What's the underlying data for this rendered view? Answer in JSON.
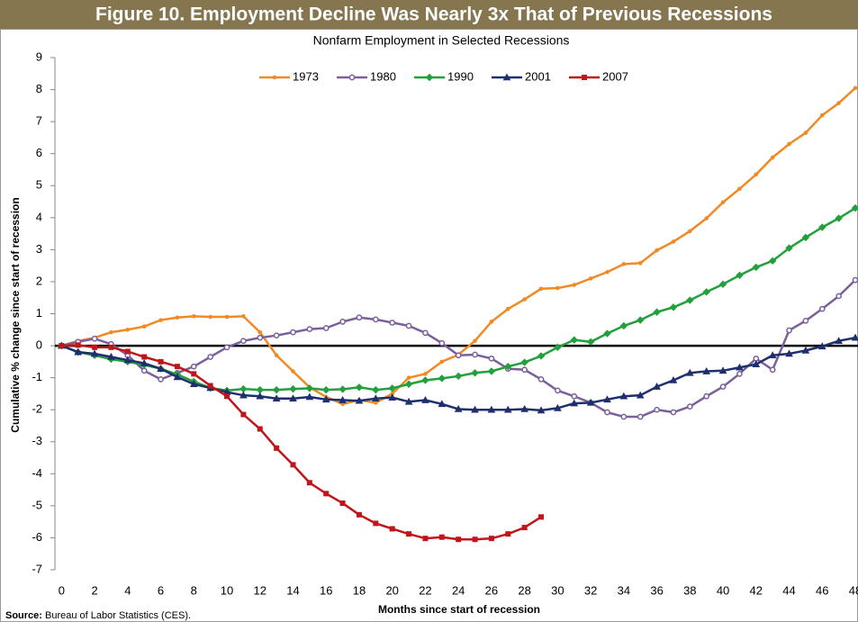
{
  "chart_data": {
    "type": "line",
    "title": "Figure 10. Employment Decline Was Nearly 3x That of Previous Recessions",
    "subtitle": "Nonfarm Employment in Selected Recessions",
    "x_label": "Months since start of recession",
    "y_label": "Cumulative % change since start of recession",
    "source": {
      "label": "Source:",
      "text": "Bureau of Labor Statistics (CES)."
    },
    "x": [
      0,
      1,
      2,
      3,
      4,
      5,
      6,
      7,
      8,
      9,
      10,
      11,
      12,
      13,
      14,
      15,
      16,
      17,
      18,
      19,
      20,
      21,
      22,
      23,
      24,
      25,
      26,
      27,
      28,
      29,
      30,
      31,
      32,
      33,
      34,
      35,
      36,
      37,
      38,
      39,
      40,
      41,
      42,
      43,
      44,
      45,
      46,
      47,
      48
    ],
    "xlim": [
      -0.4,
      48
    ],
    "xticks": [
      0,
      2,
      4,
      6,
      8,
      10,
      12,
      14,
      16,
      18,
      20,
      22,
      24,
      26,
      28,
      30,
      32,
      34,
      36,
      38,
      40,
      42,
      44,
      46,
      48
    ],
    "ylim": [
      -7,
      9
    ],
    "yticks": [
      -7,
      -6,
      -5,
      -4,
      -3,
      -2,
      -1,
      0,
      1,
      2,
      3,
      4,
      5,
      6,
      7,
      8,
      9
    ],
    "legend": "top",
    "series": [
      {
        "name": "1973",
        "color": "#f08a24",
        "marker": "dot",
        "values": [
          0,
          0.15,
          0.25,
          0.42,
          0.5,
          0.6,
          0.8,
          0.88,
          0.92,
          0.9,
          0.9,
          0.92,
          0.42,
          -0.3,
          -0.8,
          -1.3,
          -1.6,
          -1.82,
          -1.7,
          -1.78,
          -1.5,
          -1.0,
          -0.88,
          -0.5,
          -0.28,
          0.15,
          0.75,
          1.15,
          1.45,
          1.78,
          1.8,
          1.9,
          2.1,
          2.3,
          2.55,
          2.58,
          2.98,
          3.25,
          3.58,
          3.98,
          4.48,
          4.9,
          5.35,
          5.88,
          6.3,
          6.65,
          7.2,
          7.58,
          8.05
        ]
      },
      {
        "name": "1980",
        "color": "#7a5f9c",
        "marker": "circle",
        "values": [
          0,
          0.12,
          0.22,
          0.05,
          -0.3,
          -0.78,
          -1.05,
          -0.85,
          -0.65,
          -0.35,
          -0.05,
          0.15,
          0.25,
          0.32,
          0.42,
          0.52,
          0.55,
          0.75,
          0.88,
          0.82,
          0.72,
          0.62,
          0.4,
          0.08,
          -0.3,
          -0.28,
          -0.4,
          -0.72,
          -0.75,
          -1.05,
          -1.4,
          -1.58,
          -1.78,
          -2.08,
          -2.22,
          -2.22,
          -2.0,
          -2.08,
          -1.9,
          -1.58,
          -1.28,
          -0.88,
          -0.4,
          -0.75,
          0.48,
          0.78,
          1.15,
          1.55,
          2.05
        ]
      },
      {
        "name": "1990",
        "color": "#22a03c",
        "marker": "diamond",
        "values": [
          0,
          -0.2,
          -0.3,
          -0.42,
          -0.5,
          -0.6,
          -0.72,
          -0.9,
          -1.12,
          -1.32,
          -1.4,
          -1.35,
          -1.38,
          -1.38,
          -1.35,
          -1.33,
          -1.38,
          -1.36,
          -1.3,
          -1.38,
          -1.33,
          -1.2,
          -1.08,
          -1.02,
          -0.95,
          -0.85,
          -0.8,
          -0.65,
          -0.52,
          -0.32,
          -0.05,
          0.18,
          0.12,
          0.38,
          0.62,
          0.8,
          1.05,
          1.2,
          1.42,
          1.68,
          1.92,
          2.2,
          2.45,
          2.65,
          3.05,
          3.38,
          3.7,
          3.98,
          4.3
        ]
      },
      {
        "name": "2001",
        "color": "#1f2f6e",
        "marker": "triangle",
        "values": [
          0,
          -0.2,
          -0.25,
          -0.35,
          -0.45,
          -0.55,
          -0.72,
          -0.98,
          -1.2,
          -1.32,
          -1.45,
          -1.55,
          -1.58,
          -1.65,
          -1.65,
          -1.6,
          -1.68,
          -1.7,
          -1.72,
          -1.65,
          -1.62,
          -1.75,
          -1.7,
          -1.82,
          -1.98,
          -2.0,
          -2.0,
          -2.0,
          -1.98,
          -2.02,
          -1.95,
          -1.8,
          -1.78,
          -1.68,
          -1.58,
          -1.55,
          -1.28,
          -1.08,
          -0.85,
          -0.8,
          -0.78,
          -0.68,
          -0.58,
          -0.3,
          -0.25,
          -0.15,
          -0.02,
          0.15,
          0.25
        ]
      },
      {
        "name": "2007",
        "color": "#c0161b",
        "marker": "square",
        "values": [
          0,
          0.02,
          -0.05,
          -0.05,
          -0.18,
          -0.35,
          -0.5,
          -0.65,
          -0.88,
          -1.25,
          -1.58,
          -2.15,
          -2.6,
          -3.2,
          -3.72,
          -4.28,
          -4.62,
          -4.92,
          -5.28,
          -5.55,
          -5.72,
          -5.88,
          -6.02,
          -5.98,
          -6.05,
          -6.05,
          -6.02,
          -5.88,
          -5.68,
          -5.35,
          null,
          null,
          null,
          null,
          null,
          null,
          null,
          null,
          null,
          null,
          null,
          null,
          null,
          null,
          null,
          null,
          null,
          null,
          null
        ]
      }
    ]
  }
}
